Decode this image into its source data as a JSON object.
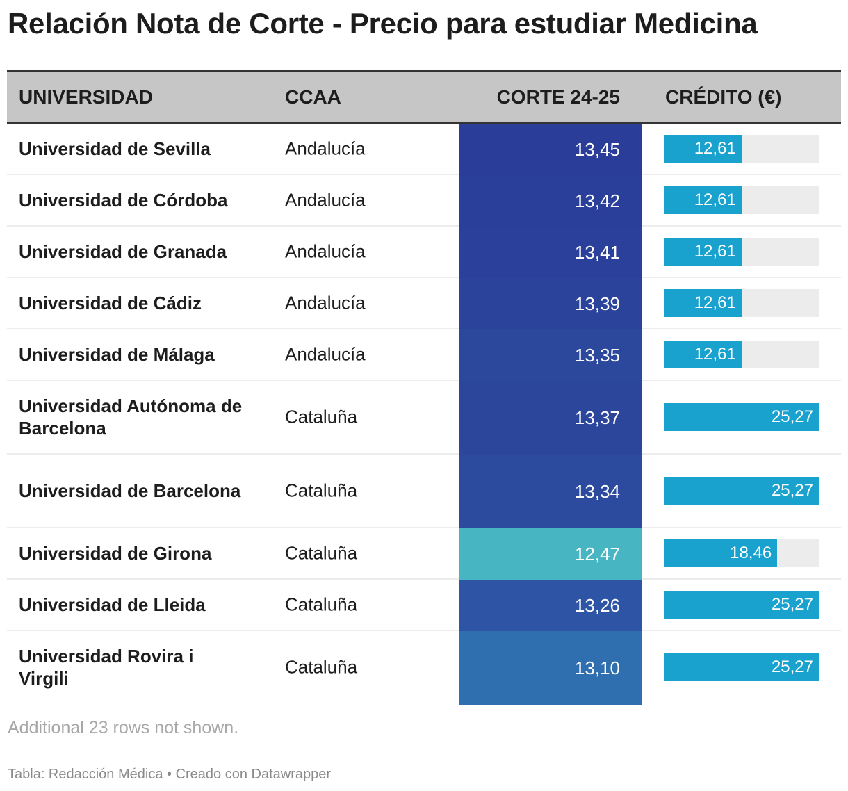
{
  "title": "Relación Nota de Corte - Precio para estudiar Medicina",
  "headers": [
    "UNIVERSIDAD",
    "CCAA",
    "CORTE 24-25",
    "CRÉDITO (€)"
  ],
  "bar_max": 25.27,
  "rows": [
    {
      "universidad": "Universidad de Sevilla",
      "ccaa": "Andalucía",
      "corte": "13,45",
      "credito": "12,61",
      "credito_value": 12.61,
      "corte_color": "#2a3d98"
    },
    {
      "universidad": "Universidad de Córdoba",
      "ccaa": "Andalucía",
      "corte": "13,42",
      "credito": "12,61",
      "credito_value": 12.61,
      "corte_color": "#2a3f99"
    },
    {
      "universidad": "Universidad de Granada",
      "ccaa": "Andalucía",
      "corte": "13,41",
      "credito": "12,61",
      "credito_value": 12.61,
      "corte_color": "#2b409a"
    },
    {
      "universidad": "Universidad de Cádiz",
      "ccaa": "Andalucía",
      "corte": "13,39",
      "credito": "12,61",
      "credito_value": 12.61,
      "corte_color": "#2b439b"
    },
    {
      "universidad": "Universidad de Málaga",
      "ccaa": "Andalucía",
      "corte": "13,35",
      "credito": "12,61",
      "credito_value": 12.61,
      "corte_color": "#2c489d"
    },
    {
      "universidad": "Universidad Autónoma de Barcelona",
      "ccaa": "Cataluña",
      "corte": "13,37",
      "credito": "25,27",
      "credito_value": 25.27,
      "corte_color": "#2c469c"
    },
    {
      "universidad": "Universidad de Barcelona",
      "ccaa": "Cataluña",
      "corte": "13,34",
      "credito": "25,27",
      "credito_value": 25.27,
      "corte_color": "#2c4a9e"
    },
    {
      "universidad": "Universidad de Girona",
      "ccaa": "Cataluña",
      "corte": "12,47",
      "credito": "18,46",
      "credito_value": 18.46,
      "corte_color": "#48b6c2"
    },
    {
      "universidad": "Universidad de Lleida",
      "ccaa": "Cataluña",
      "corte": "13,26",
      "credito": "25,27",
      "credito_value": 25.27,
      "corte_color": "#2e55a5"
    },
    {
      "universidad": "Universidad Rovira i Virgili",
      "ccaa": "Cataluña",
      "corte": "13,10",
      "credito": "25,27",
      "credito_value": 25.27,
      "corte_color": "#2f6fb0"
    }
  ],
  "note": "Additional 23 rows not shown.",
  "footer": "Tabla: Redacción Médica • Creado con Datawrapper"
}
